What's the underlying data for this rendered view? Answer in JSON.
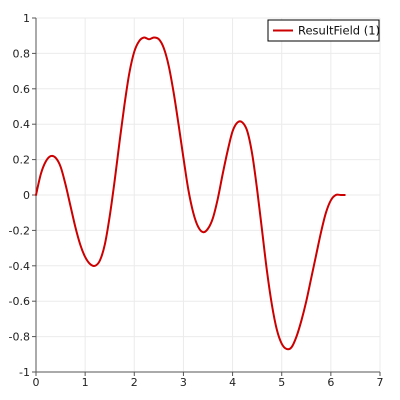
{
  "chart_data": {
    "type": "line",
    "title": "",
    "xlabel": "",
    "ylabel": "",
    "xlim": [
      0,
      7
    ],
    "ylim": [
      -1,
      1
    ],
    "x_ticks": [
      "0",
      "1",
      "2",
      "3",
      "4",
      "5",
      "6",
      "7"
    ],
    "y_ticks": [
      "1",
      "0.8",
      "0.6",
      "0.4",
      "0.2",
      "0",
      "-0.2",
      "-0.4",
      "-0.6",
      "-0.8",
      "-1"
    ],
    "grid": true,
    "legend_position": "top-right",
    "series": [
      {
        "name": "ResultField (1)",
        "color": "#cc0000",
        "x": [
          0,
          0.1,
          0.2,
          0.3,
          0.4,
          0.5,
          0.6,
          0.7,
          0.8,
          0.9,
          1.0,
          1.1,
          1.2,
          1.3,
          1.4,
          1.5,
          1.6,
          1.7,
          1.8,
          1.9,
          2.0,
          2.1,
          2.2,
          2.3,
          2.4,
          2.5,
          2.6,
          2.7,
          2.8,
          2.9,
          3.0,
          3.1,
          3.2,
          3.3,
          3.4,
          3.5,
          3.6,
          3.7,
          3.8,
          3.9,
          4.0,
          4.1,
          4.2,
          4.3,
          4.4,
          4.5,
          4.6,
          4.7,
          4.8,
          4.9,
          5.0,
          5.1,
          5.2,
          5.3,
          5.4,
          5.5,
          5.6,
          5.7,
          5.8,
          5.9,
          6.0,
          6.1,
          6.2,
          6.283
        ],
        "y": [
          0.0,
          0.12,
          0.19,
          0.22,
          0.21,
          0.16,
          0.06,
          -0.06,
          -0.18,
          -0.28,
          -0.35,
          -0.39,
          -0.4,
          -0.37,
          -0.28,
          -0.12,
          0.08,
          0.3,
          0.51,
          0.69,
          0.81,
          0.87,
          0.89,
          0.88,
          0.89,
          0.88,
          0.83,
          0.73,
          0.58,
          0.4,
          0.21,
          0.03,
          -0.1,
          -0.18,
          -0.21,
          -0.19,
          -0.13,
          -0.02,
          0.12,
          0.25,
          0.36,
          0.41,
          0.41,
          0.36,
          0.23,
          0.03,
          -0.2,
          -0.43,
          -0.62,
          -0.76,
          -0.84,
          -0.87,
          -0.86,
          -0.8,
          -0.71,
          -0.6,
          -0.47,
          -0.34,
          -0.21,
          -0.1,
          -0.03,
          0.0,
          0.0,
          0.0
        ]
      }
    ]
  }
}
